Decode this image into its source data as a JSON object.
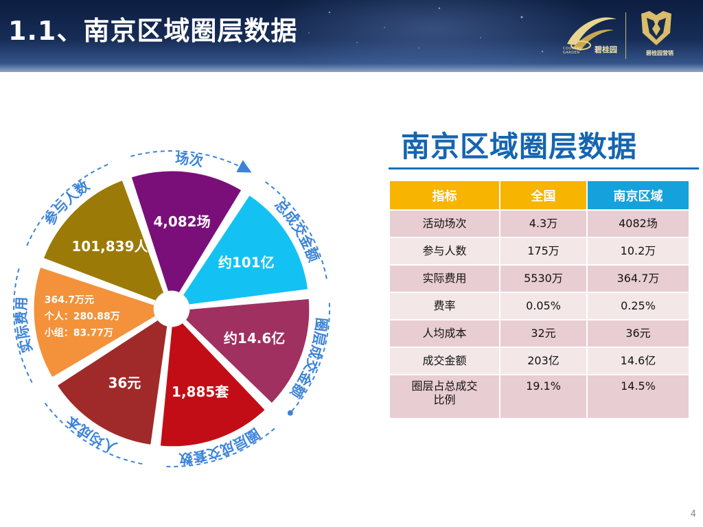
{
  "header": {
    "title": "1.1、南京区域圈层数据",
    "logo": {
      "brand_cn": "碧桂园",
      "brand_en": "COUNTRY GARDEN",
      "club_cn": "碧桂园营销",
      "garden_icon": "swirl-logo-icon",
      "club_icon": "shield-logo-icon"
    }
  },
  "wheel": {
    "segments": [
      {
        "outer_label": "场次",
        "value": "4,082场",
        "color": "#7a0f7a"
      },
      {
        "outer_label": "总成交金额",
        "value": "约101亿",
        "color": "#13c2f2"
      },
      {
        "outer_label": "圈层成交金额",
        "value": "约14.6亿",
        "color": "#a0305f"
      },
      {
        "outer_label": "圈层成交套数",
        "value": "1,885套",
        "color": "#c30d16"
      },
      {
        "outer_label": "人均成本",
        "value": "36元",
        "color": "#a02a2a"
      },
      {
        "outer_label": "实际费用",
        "value_lines": [
          "364.7万元",
          "个人：280.88万",
          "小组：83.77万"
        ],
        "color": "#f3923a"
      },
      {
        "outer_label": "参与人数",
        "value": "101,839人",
        "color": "#9c7a08"
      }
    ],
    "arc_color": "#3b83d8"
  },
  "section": {
    "title": "南京区域圈层数据"
  },
  "table": {
    "headers": [
      "指标",
      "全国",
      "南京区域"
    ],
    "rows": [
      [
        "活动场次",
        "4.3万",
        "4082场"
      ],
      [
        "参与人数",
        "175万",
        "10.2万"
      ],
      [
        "实际费用",
        "5530万",
        "364.7万"
      ],
      [
        "费率",
        "0.05%",
        "0.25%"
      ],
      [
        "人均成本",
        "32元",
        "36元"
      ],
      [
        "成交金额",
        "203亿",
        "14.6亿"
      ],
      [
        "圈层占总成交\n比例",
        "19.1%",
        "14.5%"
      ]
    ]
  },
  "page_number": "4"
}
